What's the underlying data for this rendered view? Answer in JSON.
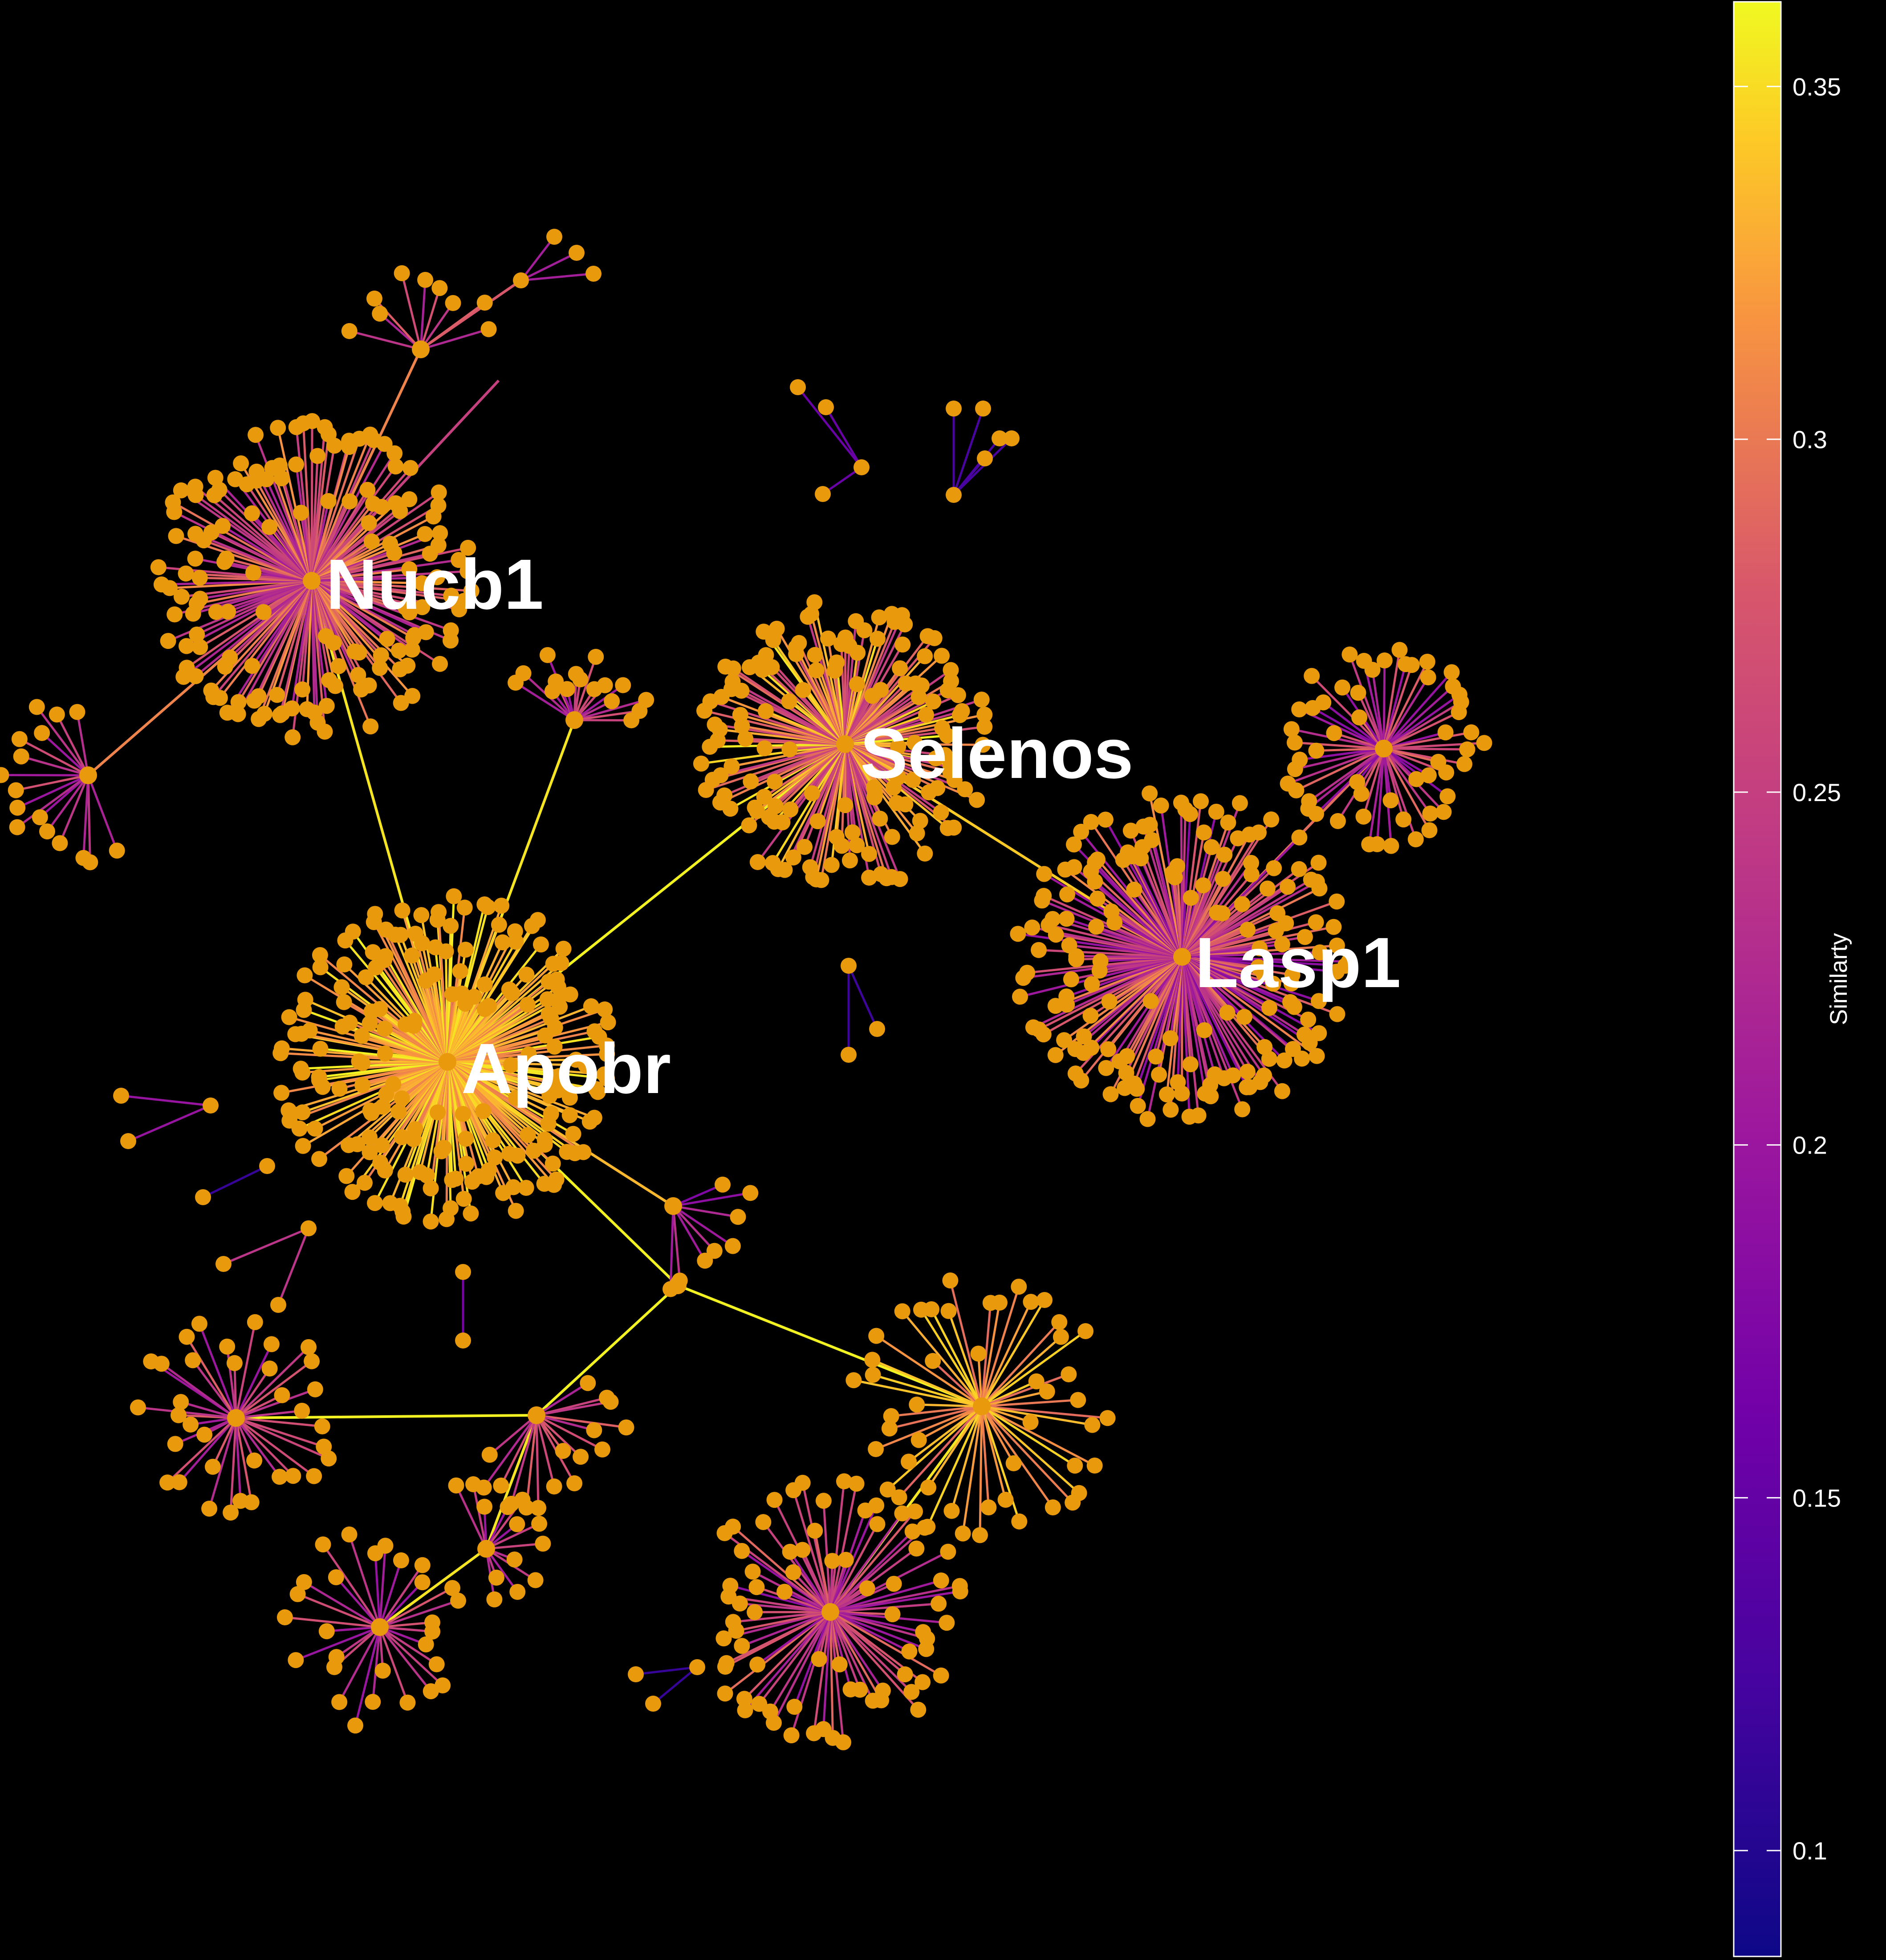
{
  "hubs": [
    "Nucb1",
    "Selenos",
    "Lasp1",
    "Apobr"
  ],
  "legend": {
    "title": "Similarty",
    "ticks": [
      "0.35",
      "0.3",
      "0.25",
      "0.2",
      "0.15",
      "0.1"
    ],
    "tick_values": [
      0.35,
      0.3,
      0.25,
      0.2,
      0.15,
      0.1
    ],
    "min": 0.085,
    "max": 0.362
  },
  "colors": {
    "background": "#000000",
    "node": "#e8990c",
    "label": "#ffffff"
  }
}
